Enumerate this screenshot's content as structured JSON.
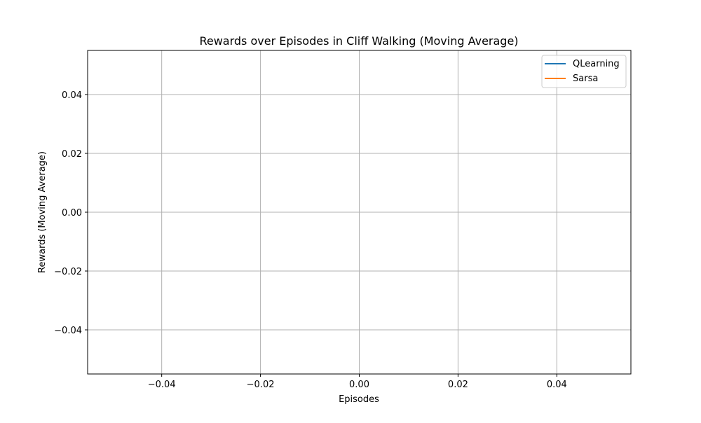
{
  "chart_data": {
    "type": "line",
    "title": "Rewards over Episodes in Cliff Walking (Moving Average)",
    "xlabel": "Episodes",
    "ylabel": "Rewards (Moving Average)",
    "xlim": [
      -0.055,
      0.055
    ],
    "ylim": [
      -0.055,
      0.055
    ],
    "x_ticks": [
      -0.04,
      -0.02,
      0.0,
      0.02,
      0.04
    ],
    "x_tick_labels": [
      "−0.04",
      "−0.02",
      "0.00",
      "0.02",
      "0.04"
    ],
    "y_ticks": [
      -0.04,
      -0.02,
      0.0,
      0.02,
      0.04
    ],
    "y_tick_labels": [
      "−0.04",
      "−0.02",
      "0.00",
      "0.02",
      "0.04"
    ],
    "grid": true,
    "legend_position": "top-right",
    "series": [
      {
        "name": "QLearning",
        "color": "#1f77b4",
        "x": [],
        "y": []
      },
      {
        "name": "Sarsa",
        "color": "#ff7f0e",
        "x": [],
        "y": []
      }
    ]
  }
}
